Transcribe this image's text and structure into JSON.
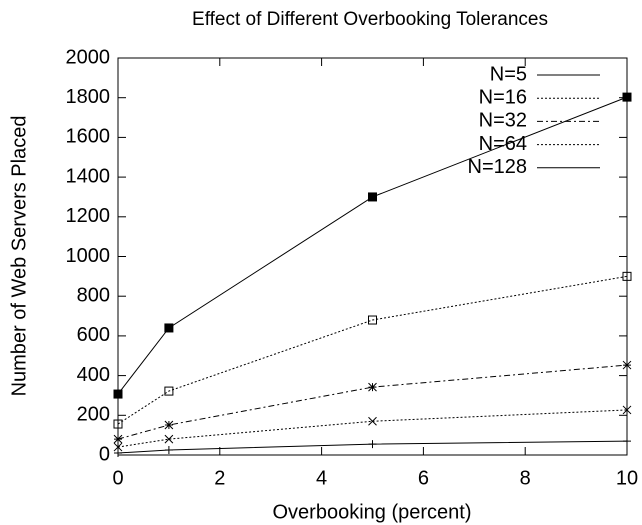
{
  "chart_data": {
    "type": "line",
    "title": "Effect of Different Overbooking Tolerances",
    "xlabel": "Overbooking (percent)",
    "ylabel": "Number of Web Servers Placed",
    "x": [
      0,
      1,
      5,
      10
    ],
    "series": [
      {
        "name": "N=5",
        "color": "#000000",
        "values": [
          10,
          25,
          55,
          70
        ]
      },
      {
        "name": "N=16",
        "color": "#000000",
        "values": [
          40,
          80,
          170,
          227
        ]
      },
      {
        "name": "N=32",
        "color": "#000000",
        "values": [
          80,
          151,
          342,
          453
        ]
      },
      {
        "name": "N=64",
        "color": "#000000",
        "values": [
          156,
          322,
          680,
          900
        ]
      },
      {
        "name": "N=128",
        "color": "#000000",
        "values": [
          307,
          640,
          1300,
          1803
        ]
      }
    ],
    "xlim": [
      0,
      10
    ],
    "xticks": [
      0,
      2,
      4,
      6,
      8,
      10
    ],
    "ylim": [
      0,
      2000
    ],
    "yticks": [
      0,
      200,
      400,
      600,
      800,
      1000,
      1200,
      1400,
      1600,
      1800,
      2000
    ],
    "legend": "top-right",
    "grid": false
  }
}
